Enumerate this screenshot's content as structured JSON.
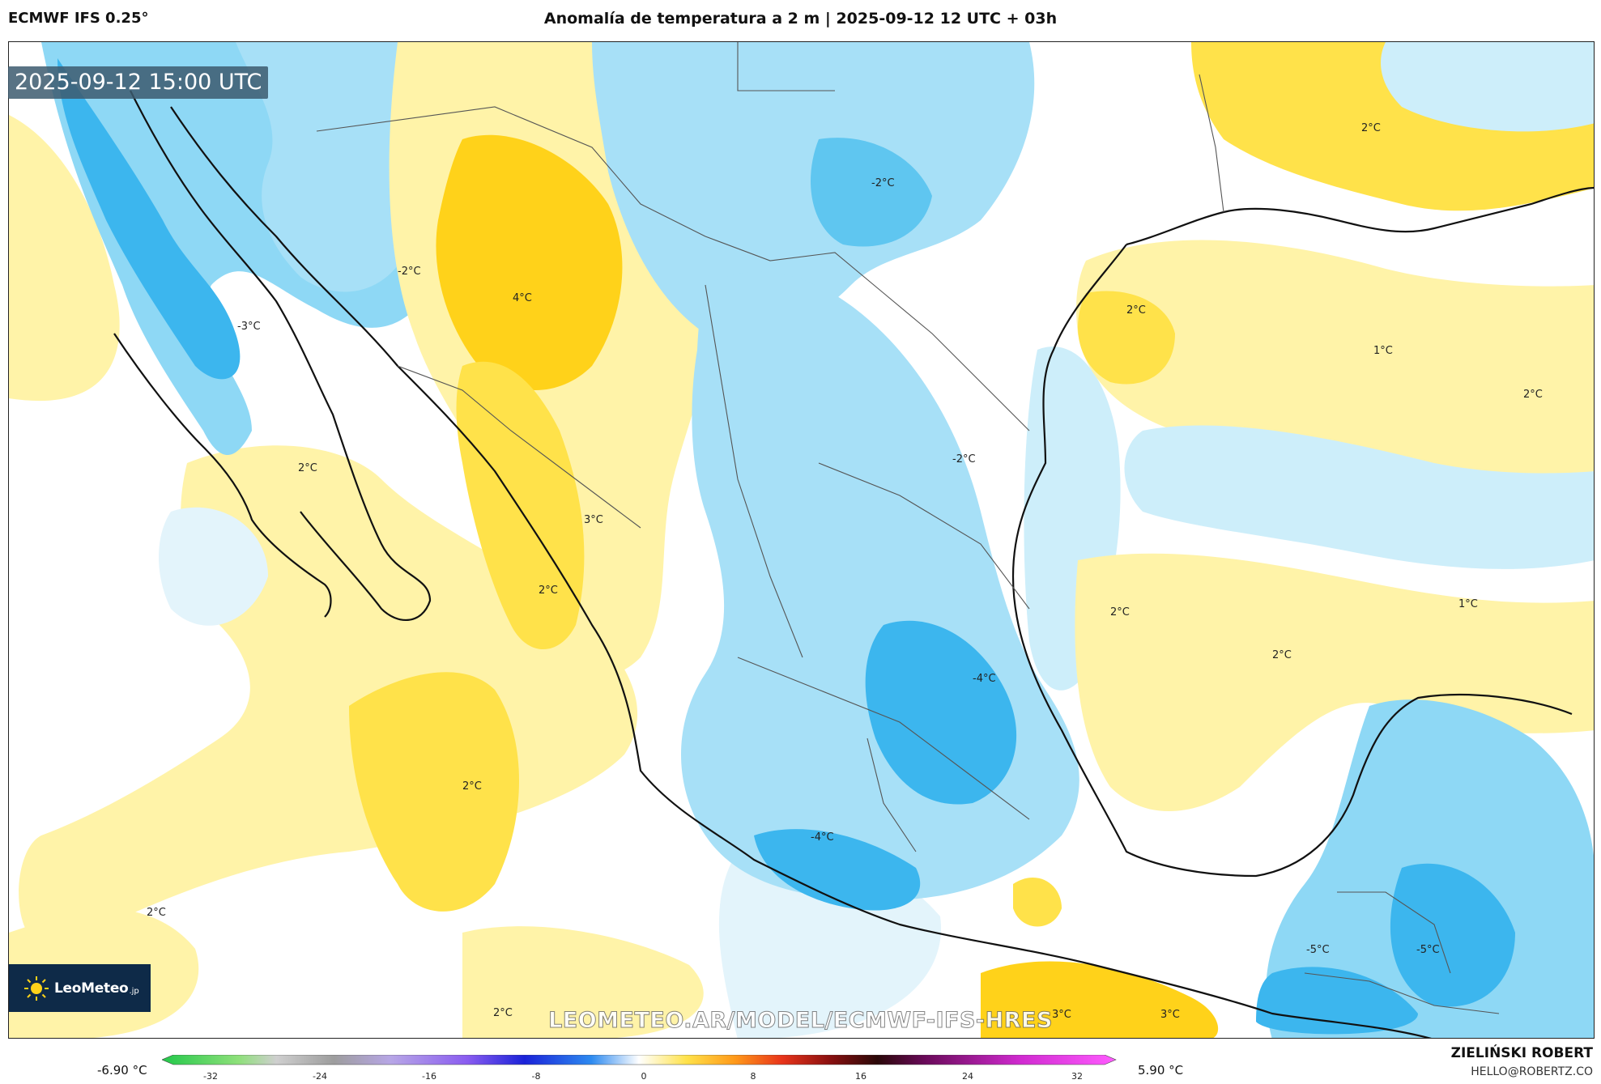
{
  "header": {
    "model": "ECMWF IFS 0.25°",
    "title": "Anomalía de temperatura a 2 m | 2025-09-12 12 UTC + 03h"
  },
  "map": {
    "valid_time": "2025-09-12 15:00 UTC",
    "watermark": "LEOMETEO.AR/MODEL/ECMWF-IFS-HRES",
    "logo_text": "LeoMeteo",
    "logo_suffix": ".jp",
    "labels": [
      "-2°C",
      "-3°C",
      "4°C",
      "2°C",
      "3°C",
      "-2°C",
      "2°C",
      "2°C",
      "2°C",
      "2°C",
      "1°C",
      "2°C",
      "-2°C",
      "2°C",
      "1°C",
      "2°C",
      "-4°C",
      "-4°C",
      "2°C",
      "-5°C",
      "-5°C",
      "2°C",
      "3°C",
      "3°C"
    ]
  },
  "colorbar": {
    "min_label": "-6.90 °C",
    "max_label": "5.90 °C",
    "ticks": [
      "-32",
      "-24",
      "-16",
      "-8",
      "0",
      "8",
      "16",
      "24",
      "32"
    ]
  },
  "credit": {
    "name": "ZIELIŃSKI ROBERT",
    "email": "HELLO@ROBERTZ.CO"
  },
  "colors": {
    "warm_light": "#fff3a8",
    "warm": "#ffe24a",
    "warm_strong": "#ffd21a",
    "cool_light": "#cdeefa",
    "cool": "#8ed8f5",
    "cool_strong": "#3cb6ee",
    "coast": "#111111",
    "border": "#555555"
  }
}
